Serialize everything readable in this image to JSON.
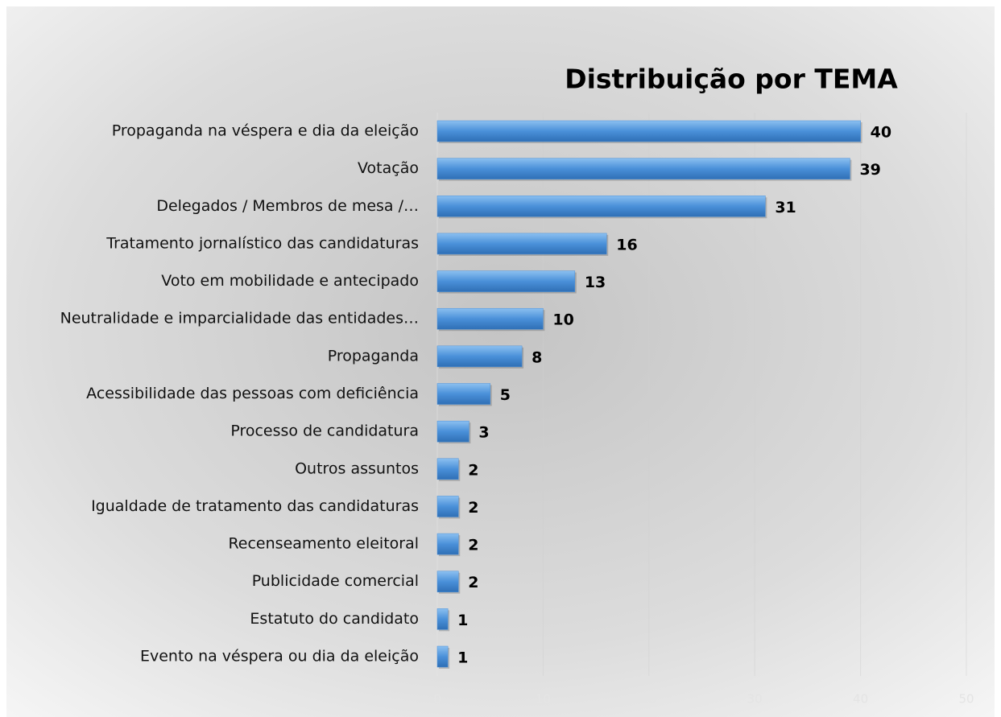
{
  "chart_data": {
    "type": "bar",
    "orientation": "horizontal",
    "title": "Distribuição por TEMA",
    "categories": [
      "Propaganda na véspera e dia da eleição",
      "Votação",
      "Delegados / Membros de mesa /…",
      "Tratamento jornalístico das candidaturas",
      "Voto em mobilidade e antecipado",
      "Neutralidade e imparcialidade das entidades…",
      "Propaganda",
      "Acessibilidade das pessoas com deficiência",
      "Processo de candidatura",
      "Outros assuntos",
      "Igualdade de tratamento das candidaturas",
      "Recenseamento eleitoral",
      "Publicidade comercial",
      "Estatuto do candidato",
      "Evento na véspera ou dia da eleição"
    ],
    "values": [
      40,
      39,
      31,
      16,
      13,
      10,
      8,
      5,
      3,
      2,
      2,
      2,
      2,
      1,
      1
    ],
    "color": "#4a90d9",
    "xlim": [
      0,
      50
    ],
    "xticks": [
      0,
      10,
      20,
      30,
      40,
      50
    ],
    "grid": true
  }
}
